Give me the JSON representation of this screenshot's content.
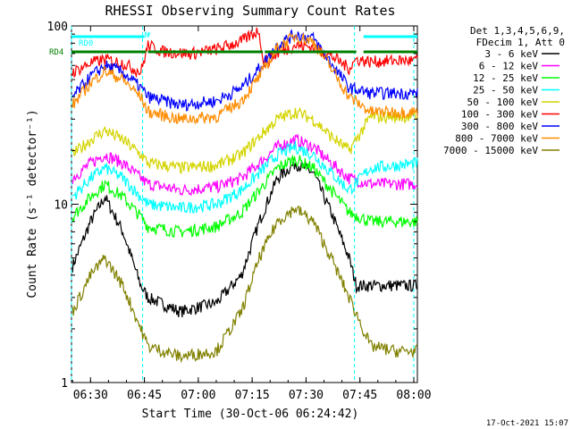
{
  "chart_data": {
    "type": "line",
    "title": "RHESSI Observing Summary Count Rates",
    "xlabel": "Start Time (30-Oct-06 06:24:42)",
    "ylabel": "Count Rate (s⁻¹ detector⁻¹)",
    "y_scale": "log",
    "ylim": [
      1,
      100
    ],
    "xlim": [
      "06:24:42",
      "08:01:00"
    ],
    "x_ticks": [
      "06:30",
      "06:45",
      "07:00",
      "07:15",
      "07:30",
      "07:45",
      "08:00"
    ],
    "y_ticks": [
      "1",
      "10",
      "100"
    ],
    "timestamp": "17-Oct-2021 15:07",
    "legend": {
      "placement": "right",
      "header": [
        "Det 1,3,4,5,6,9,",
        "FDecim 1, Att 0"
      ],
      "entries": [
        {
          "label": "3 - 6 keV",
          "color": "#000000"
        },
        {
          "label": "6 - 12 keV",
          "color": "#ff00ff"
        },
        {
          "label": "12 - 25 keV",
          "color": "#00ff00"
        },
        {
          "label": "25 - 50 keV",
          "color": "#00ffff"
        },
        {
          "label": "50 - 100 keV",
          "color": "#d4d400"
        },
        {
          "label": "100 - 300 keV",
          "color": "#ff0000"
        },
        {
          "label": "300 - 800 keV",
          "color": "#0000ff"
        },
        {
          "label": "800 - 7000 keV",
          "color": "#ff8c00"
        },
        {
          "label": "7000 - 15000 keV",
          "color": "#808000"
        }
      ]
    },
    "flags": [
      {
        "label": "RD0",
        "color": "#00ffff",
        "segments": [
          [
            "06:24:42",
            "06:45:00"
          ],
          [
            "07:46:00",
            "08:01:00"
          ]
        ]
      },
      {
        "label": "RD4",
        "color": "#008000",
        "segments": [
          [
            "06:24:42",
            "06:45:30"
          ],
          [
            "06:46:00",
            "07:18:00"
          ],
          [
            "07:18:30",
            "07:44:00"
          ],
          [
            "07:46:00",
            "08:01:00"
          ]
        ]
      },
      {
        "label": "N",
        "color": "#00ffff",
        "segments": [
          [
            "06:46:00",
            "06:46:30"
          ]
        ]
      }
    ],
    "boundaries": [
      "06:24:42",
      "06:44:30",
      "07:43:30",
      "08:00:00"
    ],
    "series": [
      {
        "name": "3 - 6 keV",
        "color": "#000000",
        "points": [
          [
            "06:25",
            4.5
          ],
          [
            "06:30",
            8
          ],
          [
            "06:34",
            11
          ],
          [
            "06:39",
            7
          ],
          [
            "06:44",
            3.5
          ],
          [
            "06:46",
            3
          ],
          [
            "06:55",
            2.5
          ],
          [
            "07:05",
            2.8
          ],
          [
            "07:12",
            4
          ],
          [
            "07:17",
            8
          ],
          [
            "07:22",
            14
          ],
          [
            "07:27",
            17
          ],
          [
            "07:32",
            15
          ],
          [
            "07:37",
            9
          ],
          [
            "07:42",
            5
          ],
          [
            "07:44",
            3.5
          ],
          [
            "07:48",
            3.5
          ],
          [
            "07:55",
            3.5
          ],
          [
            "08:01",
            3.5
          ]
        ]
      },
      {
        "name": "6 - 12 keV",
        "color": "#ff00ff",
        "points": [
          [
            "06:25",
            14
          ],
          [
            "06:30",
            17
          ],
          [
            "06:34",
            19
          ],
          [
            "06:39",
            17
          ],
          [
            "06:44",
            14
          ],
          [
            "06:46",
            13
          ],
          [
            "06:55",
            12
          ],
          [
            "07:05",
            12.5
          ],
          [
            "07:12",
            14
          ],
          [
            "07:17",
            17
          ],
          [
            "07:22",
            21
          ],
          [
            "07:27",
            23
          ],
          [
            "07:32",
            21
          ],
          [
            "07:37",
            17
          ],
          [
            "07:42",
            14
          ],
          [
            "07:48",
            13
          ],
          [
            "07:55",
            13
          ],
          [
            "08:01",
            13
          ]
        ]
      },
      {
        "name": "12 - 25 keV",
        "color": "#00ff00",
        "points": [
          [
            "06:25",
            8.5
          ],
          [
            "06:30",
            11
          ],
          [
            "06:34",
            13
          ],
          [
            "06:39",
            11
          ],
          [
            "06:44",
            8.5
          ],
          [
            "06:46",
            7.5
          ],
          [
            "06:55",
            7
          ],
          [
            "07:05",
            7.5
          ],
          [
            "07:12",
            9
          ],
          [
            "07:17",
            12
          ],
          [
            "07:22",
            16
          ],
          [
            "07:27",
            18
          ],
          [
            "07:32",
            16
          ],
          [
            "07:37",
            12
          ],
          [
            "07:42",
            9
          ],
          [
            "07:48",
            8
          ],
          [
            "07:55",
            8
          ],
          [
            "08:01",
            8
          ]
        ]
      },
      {
        "name": "25 - 50 keV",
        "color": "#00ffff",
        "points": [
          [
            "06:25",
            11
          ],
          [
            "06:30",
            14
          ],
          [
            "06:34",
            16
          ],
          [
            "06:39",
            14
          ],
          [
            "06:44",
            11
          ],
          [
            "06:46",
            10
          ],
          [
            "06:55",
            9.5
          ],
          [
            "07:05",
            10
          ],
          [
            "07:12",
            12
          ],
          [
            "07:17",
            15
          ],
          [
            "07:22",
            19
          ],
          [
            "07:27",
            21
          ],
          [
            "07:32",
            19
          ],
          [
            "07:37",
            15
          ],
          [
            "07:42",
            12
          ],
          [
            "07:48",
            16
          ],
          [
            "07:55",
            16.5
          ],
          [
            "08:01",
            17
          ]
        ]
      },
      {
        "name": "50 - 100 keV",
        "color": "#d4d400",
        "points": [
          [
            "06:25",
            19
          ],
          [
            "06:30",
            23
          ],
          [
            "06:34",
            26
          ],
          [
            "06:39",
            23
          ],
          [
            "06:44",
            19
          ],
          [
            "06:46",
            17
          ],
          [
            "06:55",
            16
          ],
          [
            "07:05",
            16.5
          ],
          [
            "07:12",
            19
          ],
          [
            "07:17",
            24
          ],
          [
            "07:22",
            30
          ],
          [
            "07:27",
            33
          ],
          [
            "07:32",
            30
          ],
          [
            "07:37",
            24
          ],
          [
            "07:42",
            20
          ],
          [
            "07:48",
            31
          ],
          [
            "07:55",
            31
          ],
          [
            "08:01",
            31
          ]
        ]
      },
      {
        "name": "100 - 300 keV",
        "color": "#ff0000",
        "points": [
          [
            "06:25",
            55
          ],
          [
            "06:30",
            62
          ],
          [
            "06:34",
            65
          ],
          [
            "06:39",
            62
          ],
          [
            "06:44",
            55
          ],
          [
            "06:46",
            78
          ],
          [
            "06:50",
            72
          ],
          [
            "06:58",
            70
          ],
          [
            "07:05",
            74
          ],
          [
            "07:12",
            82
          ],
          [
            "07:17",
            95
          ],
          [
            "07:18",
            62
          ],
          [
            "07:22",
            70
          ],
          [
            "07:27",
            78
          ],
          [
            "07:32",
            76
          ],
          [
            "07:37",
            68
          ],
          [
            "07:42",
            58
          ],
          [
            "07:44",
            65
          ],
          [
            "07:48",
            63
          ],
          [
            "07:55",
            64
          ],
          [
            "08:01",
            64
          ]
        ]
      },
      {
        "name": "300 - 800 keV",
        "color": "#0000ff",
        "points": [
          [
            "06:25",
            40
          ],
          [
            "06:30",
            52
          ],
          [
            "06:34",
            60
          ],
          [
            "06:39",
            55
          ],
          [
            "06:44",
            45
          ],
          [
            "06:46",
            40
          ],
          [
            "06:55",
            36
          ],
          [
            "07:05",
            38
          ],
          [
            "07:12",
            45
          ],
          [
            "07:17",
            58
          ],
          [
            "07:22",
            78
          ],
          [
            "07:27",
            90
          ],
          [
            "07:32",
            85
          ],
          [
            "07:37",
            62
          ],
          [
            "07:42",
            45
          ],
          [
            "07:48",
            42
          ],
          [
            "07:55",
            42
          ],
          [
            "08:01",
            42
          ]
        ]
      },
      {
        "name": "800 - 7000 keV",
        "color": "#ff8c00",
        "points": [
          [
            "06:25",
            36
          ],
          [
            "06:30",
            48
          ],
          [
            "06:34",
            56
          ],
          [
            "06:39",
            50
          ],
          [
            "06:44",
            40
          ],
          [
            "06:46",
            33
          ],
          [
            "06:55",
            30
          ],
          [
            "07:05",
            31
          ],
          [
            "07:12",
            38
          ],
          [
            "07:17",
            52
          ],
          [
            "07:22",
            75
          ],
          [
            "07:27",
            88
          ],
          [
            "07:32",
            82
          ],
          [
            "07:37",
            58
          ],
          [
            "07:42",
            40
          ],
          [
            "07:48",
            33
          ],
          [
            "07:55",
            33
          ],
          [
            "08:01",
            33
          ]
        ]
      },
      {
        "name": "7000 - 15000 keV",
        "color": "#808000",
        "points": [
          [
            "06:25",
            2.5
          ],
          [
            "06:30",
            4
          ],
          [
            "06:34",
            5
          ],
          [
            "06:39",
            3.5
          ],
          [
            "06:44",
            2
          ],
          [
            "06:46",
            1.6
          ],
          [
            "06:55",
            1.4
          ],
          [
            "07:05",
            1.5
          ],
          [
            "07:12",
            2.5
          ],
          [
            "07:17",
            5
          ],
          [
            "07:22",
            8
          ],
          [
            "07:27",
            9.5
          ],
          [
            "07:32",
            8
          ],
          [
            "07:37",
            5
          ],
          [
            "07:42",
            3
          ],
          [
            "07:48",
            1.6
          ],
          [
            "07:55",
            1.5
          ],
          [
            "08:01",
            1.5
          ]
        ]
      }
    ]
  }
}
